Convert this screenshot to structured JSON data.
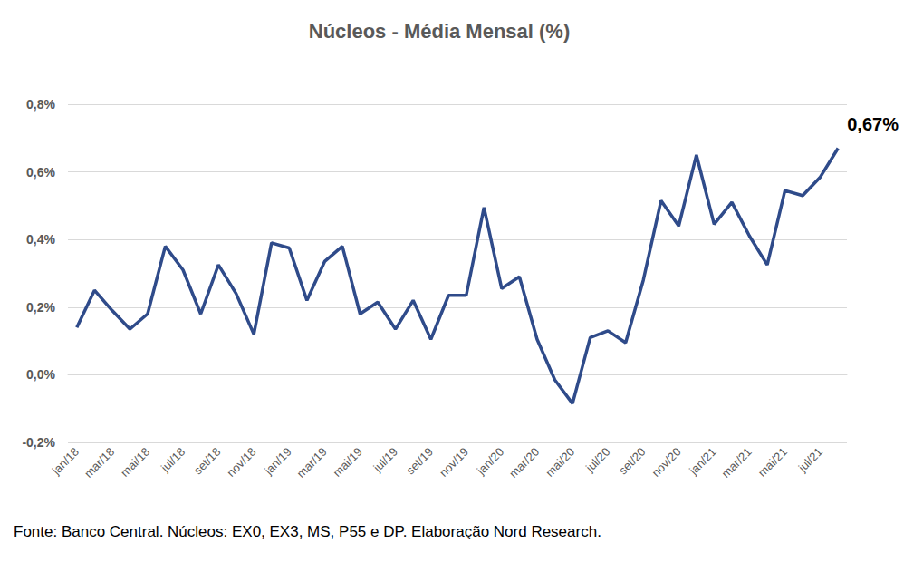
{
  "chart_data": {
    "type": "line",
    "title": "Núcleos - Média Mensal (%)",
    "caption": "Fonte: Banco Central. Núcleos: EX0, EX3, MS, P55 e DP. Elaboração Nord Research.",
    "categories": [
      "jan/18",
      null,
      "mar/18",
      null,
      "mai/18",
      null,
      "jul/18",
      null,
      "set/18",
      null,
      "nov/18",
      null,
      "jan/19",
      null,
      "mar/19",
      null,
      "mai/19",
      null,
      "jul/19",
      null,
      "set/19",
      null,
      "nov/19",
      null,
      "jan/20",
      null,
      "mar/20",
      null,
      "mai/20",
      null,
      "jul/20",
      null,
      "set/20",
      null,
      "nov/20",
      null,
      "jan/21",
      null,
      "mar/21",
      null,
      "mai/21",
      null,
      "jul/21",
      null
    ],
    "values": [
      0.14,
      0.25,
      0.19,
      0.135,
      0.18,
      0.38,
      0.31,
      0.18,
      0.325,
      0.24,
      0.12,
      0.39,
      0.375,
      0.22,
      0.335,
      0.38,
      0.18,
      0.215,
      0.135,
      0.22,
      0.105,
      0.235,
      0.235,
      0.495,
      0.255,
      0.29,
      0.105,
      -0.015,
      -0.085,
      0.11,
      0.13,
      0.095,
      0.28,
      0.515,
      0.44,
      0.65,
      0.445,
      0.51,
      0.41,
      0.325,
      0.545,
      0.53,
      0.585,
      0.67
    ],
    "value_labels": [
      null,
      null,
      null,
      null,
      null,
      null,
      null,
      null,
      null,
      null,
      null,
      null,
      null,
      null,
      null,
      null,
      null,
      null,
      null,
      null,
      null,
      null,
      null,
      null,
      null,
      null,
      null,
      null,
      null,
      null,
      null,
      null,
      null,
      null,
      null,
      null,
      null,
      null,
      null,
      null,
      null,
      null,
      null,
      "0,67%"
    ],
    "color": "#2f4b8a",
    "ylim": [
      -0.2,
      0.8
    ],
    "yticks": [
      {
        "value": -0.2,
        "label": "-0,2%"
      },
      {
        "value": 0,
        "label": "0,0%"
      },
      {
        "value": 0.2,
        "label": "0,2%"
      },
      {
        "value": 0.4,
        "label": "0,4%"
      },
      {
        "value": 0.6,
        "label": "0,6%"
      },
      {
        "value": 0.8,
        "label": "0,8%"
      }
    ],
    "grid": true,
    "data_labels": true
  }
}
